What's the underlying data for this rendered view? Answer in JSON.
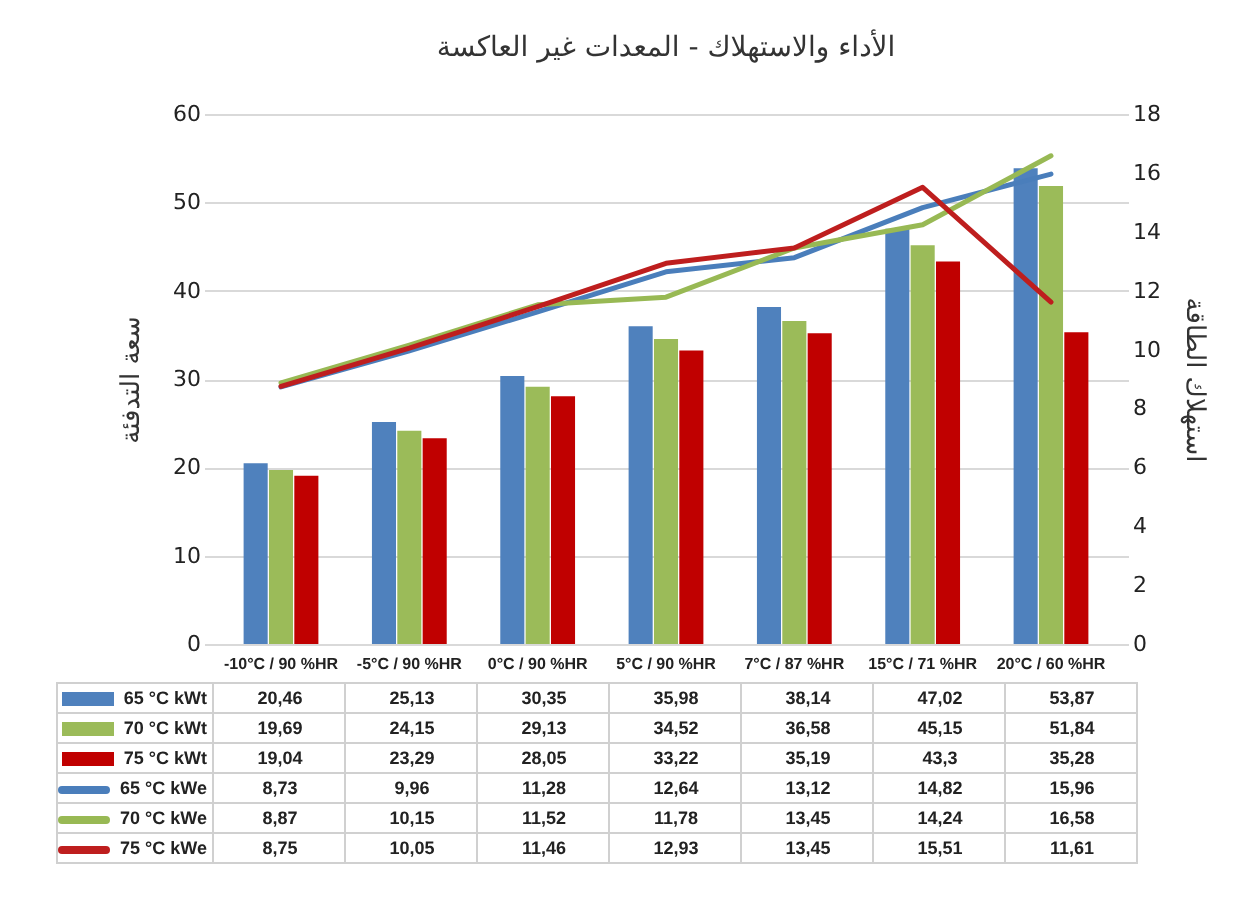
{
  "chart_data": {
    "type": "bar",
    "title": "الأداء والاستهلاك - المعدات غير العاكسة",
    "ylabel": "سعة التدفئة",
    "y2label": "استهلاك الطاقة",
    "categories": [
      "-10°C / 90 %HR",
      "-5°C / 90 %HR",
      "0°C / 90 %HR",
      "5°C / 90 %HR",
      "7°C / 87 %HR",
      "15°C / 71 %HR",
      "20°C / 60 %HR"
    ],
    "ylim": [
      0,
      60
    ],
    "yticks": [
      0,
      10,
      20,
      30,
      40,
      50,
      60
    ],
    "y2lim": [
      0,
      18
    ],
    "y2ticks": [
      0,
      2,
      4,
      6,
      8,
      10,
      12,
      14,
      16,
      18
    ],
    "grid": "y",
    "legend": "bottom",
    "series": [
      {
        "name": "65 °C kWt",
        "color": "#4f81bd",
        "values": [
          20.46,
          25.13,
          30.35,
          35.98,
          38.14,
          47.02,
          53.87
        ],
        "value_labels": [
          "20,46",
          "25,13",
          "30,35",
          "35,98",
          "38,14",
          "47,02",
          "53,87"
        ]
      },
      {
        "name": "70 °C kWt",
        "color": "#9bbb59",
        "values": [
          19.69,
          24.15,
          29.13,
          34.52,
          36.58,
          45.15,
          51.84
        ],
        "value_labels": [
          "19,69",
          "24,15",
          "29,13",
          "34,52",
          "36,58",
          "45,15",
          "51,84"
        ]
      },
      {
        "name": "75 °C kWt",
        "color": "#c00000",
        "values": [
          19.04,
          23.29,
          28.05,
          33.22,
          35.19,
          43.3,
          35.28
        ],
        "value_labels": [
          "19,04",
          "23,29",
          "28,05",
          "33,22",
          "35,19",
          "43,3",
          "35,28"
        ]
      },
      {
        "name": "65 °C kWe",
        "type": "line",
        "axis": "y2",
        "color": "#4a7ebb",
        "values": [
          8.73,
          9.96,
          11.28,
          12.64,
          13.12,
          14.82,
          15.96
        ],
        "value_labels": [
          "8,73",
          "9,96",
          "11,28",
          "12,64",
          "13,12",
          "14,82",
          "15,96"
        ]
      },
      {
        "name": "70 °C kWe",
        "type": "line",
        "axis": "y2",
        "color": "#98b954",
        "values": [
          8.87,
          10.15,
          11.52,
          11.78,
          13.45,
          14.24,
          16.58
        ],
        "value_labels": [
          "8,87",
          "10,15",
          "11,52",
          "11,78",
          "13,45",
          "14,24",
          "16,58"
        ]
      },
      {
        "name": "75 °C kWe",
        "type": "line",
        "axis": "y2",
        "color": "#be1e1e",
        "values": [
          8.75,
          10.05,
          11.46,
          12.93,
          13.45,
          15.51,
          11.61
        ],
        "value_labels": [
          "8,75",
          "10,05",
          "11,46",
          "12,93",
          "13,45",
          "15,51",
          "11,61"
        ]
      }
    ]
  }
}
